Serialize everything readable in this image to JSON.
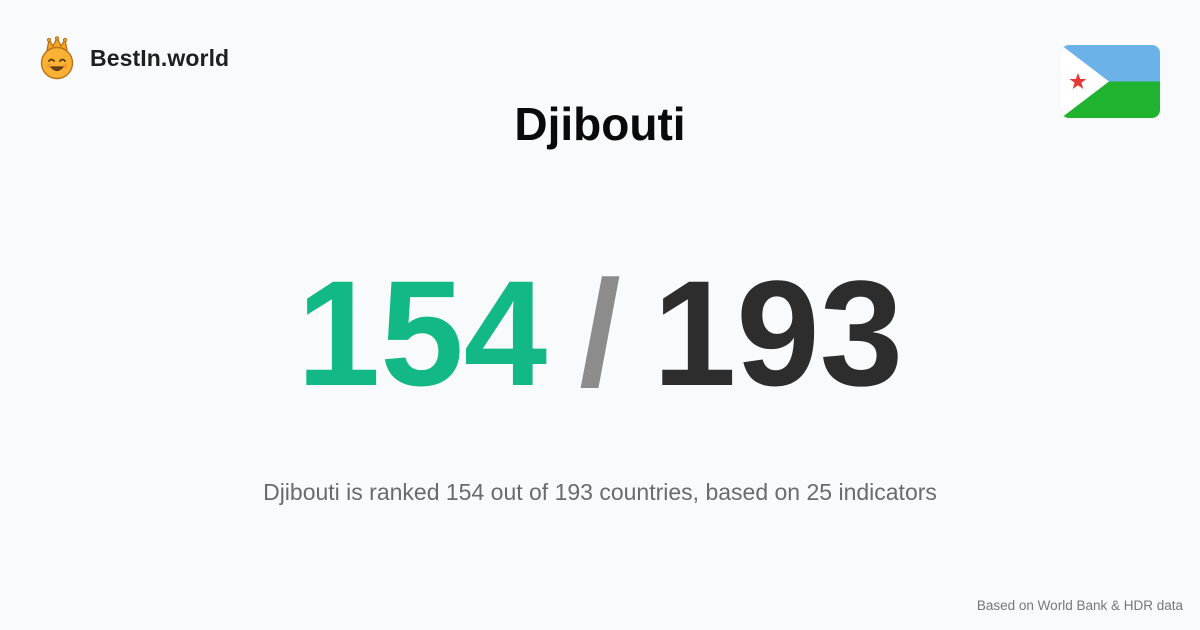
{
  "brand": {
    "name": "BestIn.world",
    "logo_icon": "crowned-smiley-icon"
  },
  "country": {
    "name": "Djibouti",
    "flag_icon": "djibouti-flag-icon",
    "flag_colors": {
      "blue": "#6ab2e7",
      "green": "#1fb32f",
      "white": "#ffffff",
      "star": "#e53935"
    }
  },
  "ranking": {
    "rank": "154",
    "separator": "/",
    "total": "193",
    "rank_color": "#12b886"
  },
  "description": "Djibouti is ranked 154 out of 193 countries, based on 25 indicators",
  "footer": {
    "source": "Based on World Bank & HDR data"
  }
}
